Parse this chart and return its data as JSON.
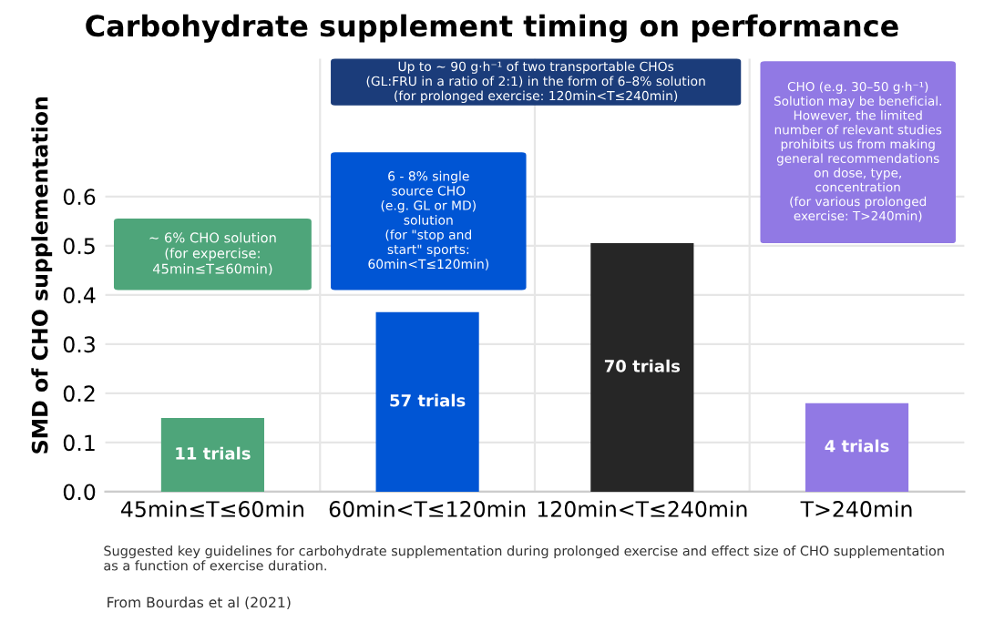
{
  "chart_data": {
    "type": "bar",
    "title": "Carbohydrate supplement timing on performance",
    "ylabel": "SMD of CHO supplementation",
    "categories": [
      "45min≤T≤60min",
      "60min<T≤120min",
      "120min<T≤240min",
      "T>240min"
    ],
    "values": [
      0.15,
      0.365,
      0.505,
      0.18
    ],
    "colors": [
      "#4ea57a",
      "#0055d4",
      "#262626",
      "#9179e4"
    ],
    "ylim": [
      0,
      0.88
    ],
    "yticks": [
      {
        "value": 0,
        "label": "0.0"
      },
      0.1,
      0.2,
      0.3,
      0.4,
      0.5,
      0.6
    ],
    "grid": true,
    "annotations": [
      "~ 6% CHO solution\n(for expercise:\n45min≤T≤60min)",
      "6 - 8% single\nsource CHO\n(e.g. GL or MD)\nsolution\n(for \"stop and\nstart\" sports:\n60min<T≤120min)",
      "Up to ~ 90 g·h⁻¹ of two transportable CHOs\n(GL:FRU in a ratio of 2:1) in the form of 6–8% solution\n(for prolonged exercise: 120min<T≤240min)",
      "CHO (e.g. 30–50 g·h⁻¹)\nSolution may be beneficial.\nHowever, the limited\nnumber of relevant studies\nprohibits us from making\ngeneral recommendations\non dose, type,\nconcentration\n(for various prolonged\nexercise: T>240min)",
      "Suggested key guidelines for carbohydrate supplementation during prolonged exercise and effect size of CHO supplementation\nas a function of exercise duration.",
      "From Bourdas et al (2021)",
      "11 trials",
      "57 trials",
      "70 trials",
      "4 trials"
    ]
  }
}
